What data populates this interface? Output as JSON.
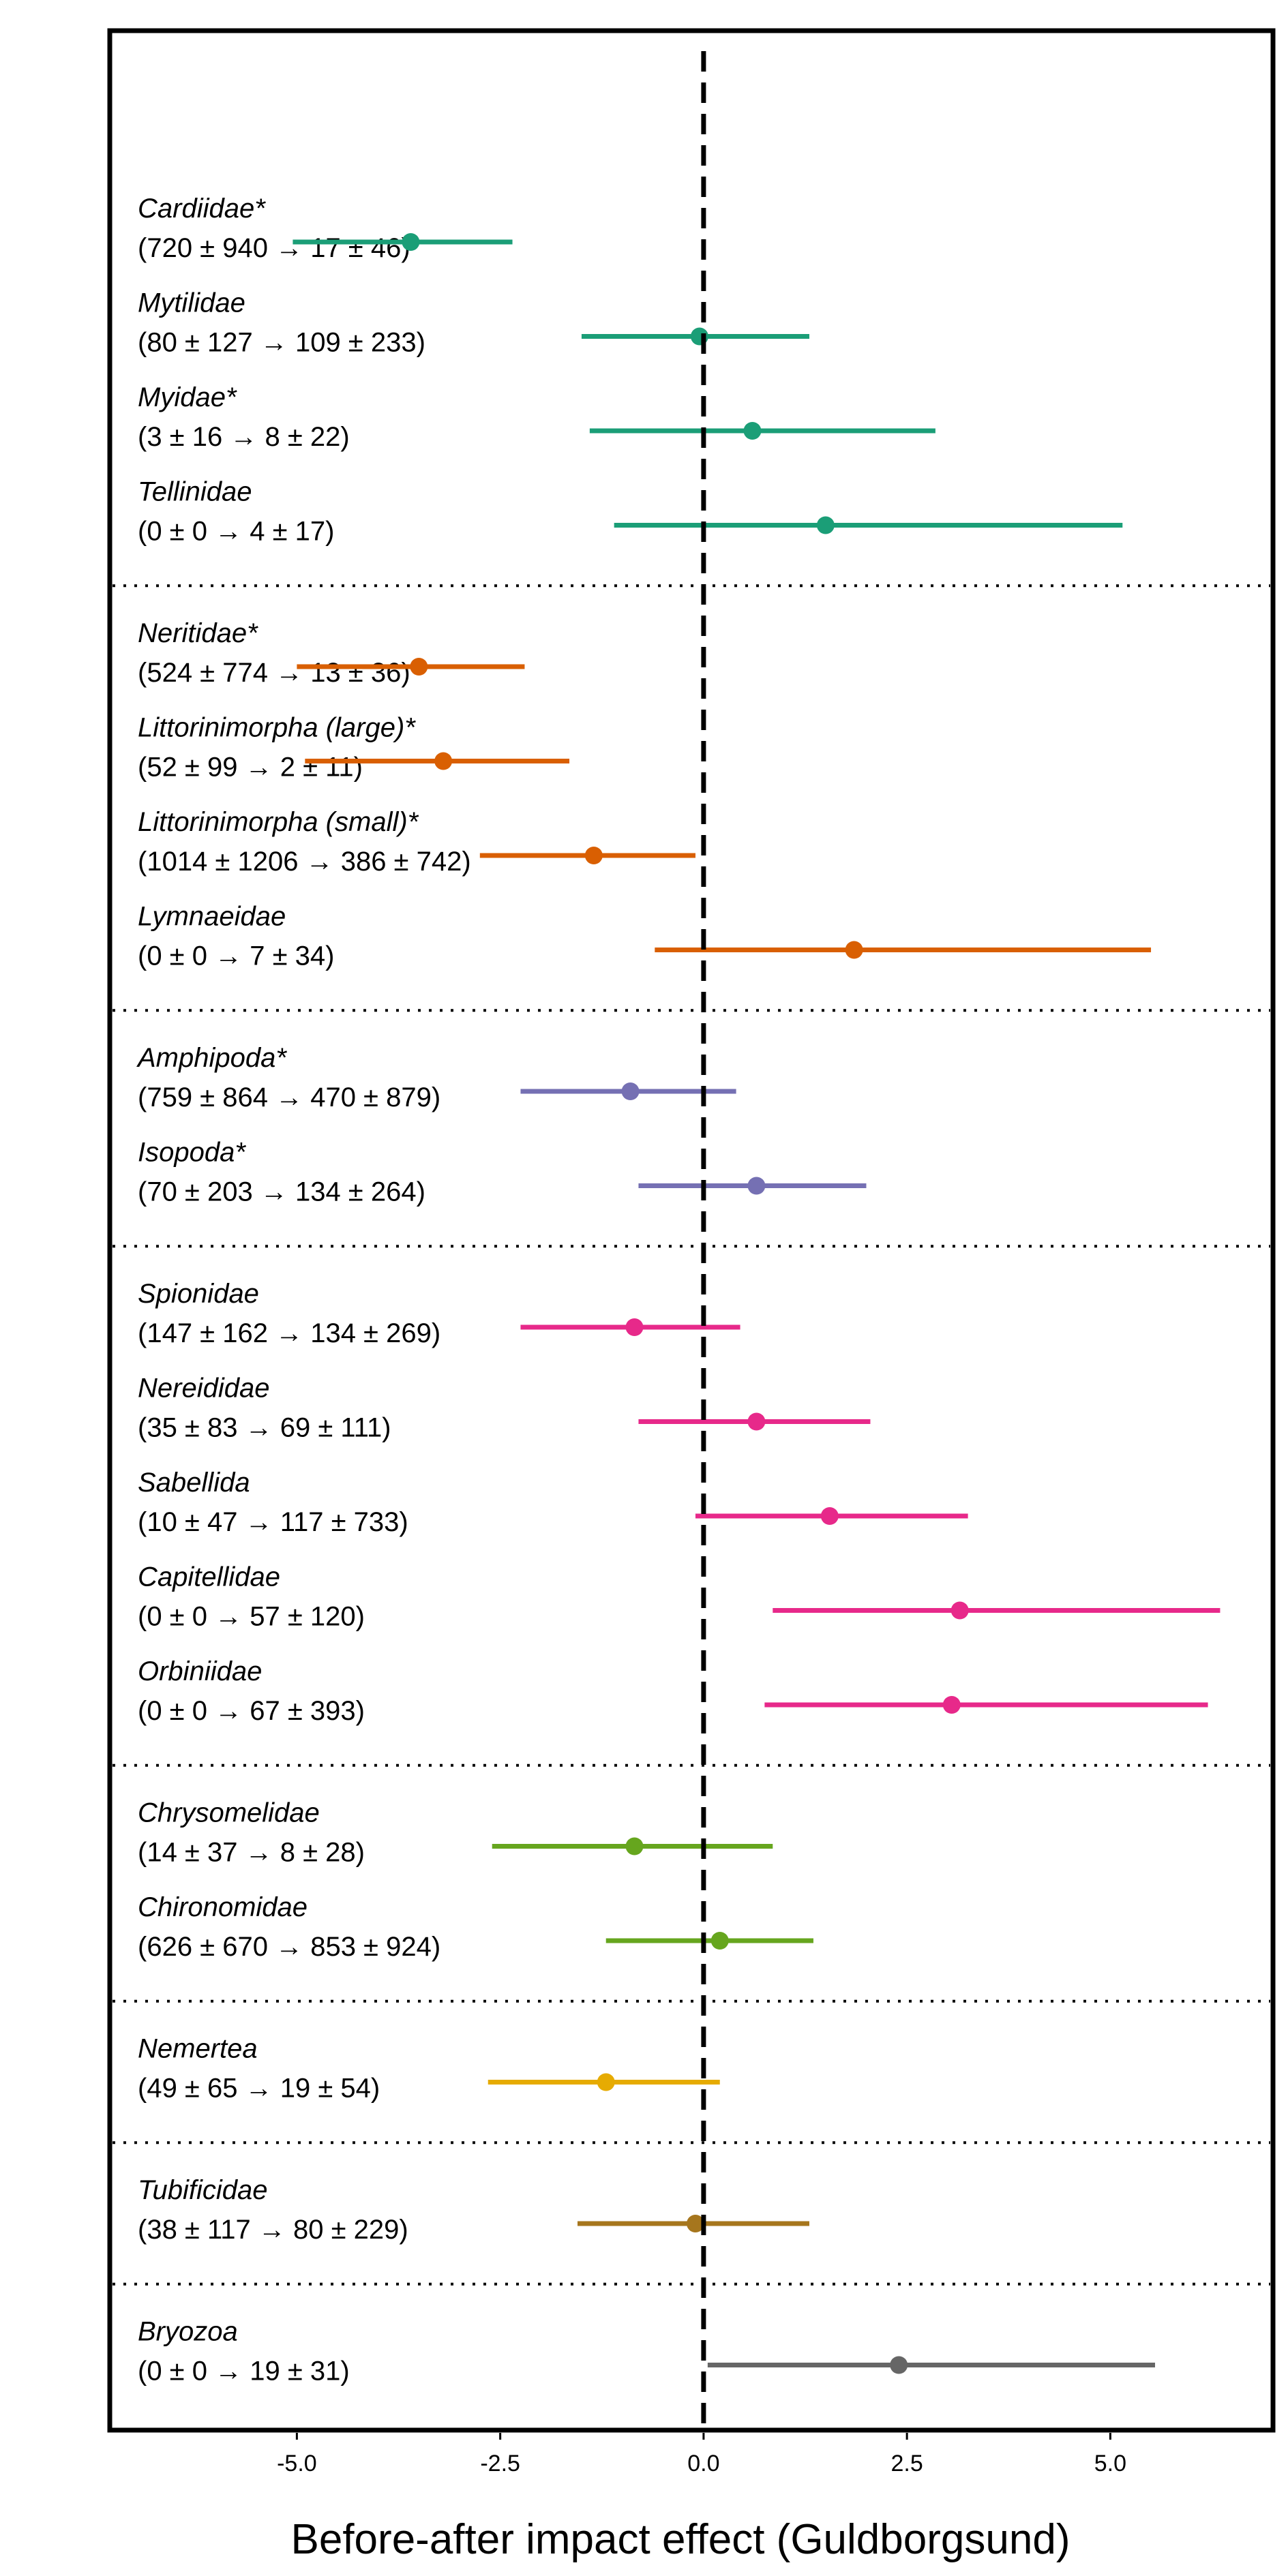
{
  "chart_data": {
    "type": "forest",
    "xlabel": "Before-after impact effect (Guldborgsund)",
    "xlim": [
      -7.3,
      7.0
    ],
    "xticks": [
      -5.0,
      -2.5,
      0.0,
      2.5,
      5.0
    ],
    "xtick_labels": [
      "-5.0",
      "-2.5",
      "0.0",
      "2.5",
      "5.0"
    ],
    "reference_line": 0.0,
    "grid": false,
    "groups": [
      {
        "color": "#1b9e77",
        "rows": [
          {
            "family": "Cardiidae*",
            "counts": "(720 ± 940 → 17 ± 46)",
            "estimate": -3.6,
            "lower": -5.05,
            "upper": -2.35
          },
          {
            "family": "Mytilidae",
            "counts": "(80 ± 127 → 109 ± 233)",
            "estimate": -0.05,
            "lower": -1.5,
            "upper": 1.3
          },
          {
            "family": "Myidae*",
            "counts": "(3 ± 16 → 8 ± 22)",
            "estimate": 0.6,
            "lower": -1.4,
            "upper": 2.85
          },
          {
            "family": "Tellinidae",
            "counts": "(0 ± 0 → 4 ± 17)",
            "estimate": 1.5,
            "lower": -1.1,
            "upper": 5.15
          }
        ]
      },
      {
        "color": "#d95f02",
        "rows": [
          {
            "family": "Neritidae*",
            "counts": "(524 ± 774 → 13 ± 36)",
            "estimate": -3.5,
            "lower": -5.0,
            "upper": -2.2
          },
          {
            "family": "Littorinimorpha (large)*",
            "counts": "(52 ± 99 → 2 ± 11)",
            "estimate": -3.2,
            "lower": -4.9,
            "upper": -1.65
          },
          {
            "family": "Littorinimorpha (small)*",
            "counts": "(1014 ± 1206 → 386 ± 742)",
            "estimate": -1.35,
            "lower": -2.75,
            "upper": -0.1
          },
          {
            "family": "Lymnaeidae",
            "counts": "(0 ± 0 → 7 ± 34)",
            "estimate": 1.85,
            "lower": -0.6,
            "upper": 5.5
          }
        ]
      },
      {
        "color": "#7570b3",
        "rows": [
          {
            "family": "Amphipoda*",
            "counts": "(759 ± 864 → 470 ± 879)",
            "estimate": -0.9,
            "lower": -2.25,
            "upper": 0.4
          },
          {
            "family": "Isopoda*",
            "counts": "(70 ± 203 → 134 ± 264)",
            "estimate": 0.65,
            "lower": -0.8,
            "upper": 2.0
          }
        ]
      },
      {
        "color": "#e7298a",
        "rows": [
          {
            "family": "Spionidae",
            "counts": "(147 ± 162 → 134 ± 269)",
            "estimate": -0.85,
            "lower": -2.25,
            "upper": 0.45
          },
          {
            "family": "Nereididae",
            "counts": "(35 ± 83 → 69 ± 111)",
            "estimate": 0.65,
            "lower": -0.8,
            "upper": 2.05
          },
          {
            "family": "Sabellida",
            "counts": "(10 ± 47 → 117 ± 733)",
            "estimate": 1.55,
            "lower": -0.1,
            "upper": 3.25
          },
          {
            "family": "Capitellidae",
            "counts": "(0 ± 0 → 57 ± 120)",
            "estimate": 3.15,
            "lower": 0.85,
            "upper": 6.35
          },
          {
            "family": "Orbiniidae",
            "counts": "(0 ± 0 → 67 ± 393)",
            "estimate": 3.05,
            "lower": 0.75,
            "upper": 6.2
          }
        ]
      },
      {
        "color": "#66a61e",
        "rows": [
          {
            "family": "Chrysomelidae",
            "counts": "(14 ± 37 → 8 ± 28)",
            "estimate": -0.85,
            "lower": -2.6,
            "upper": 0.85
          },
          {
            "family": "Chironomidae",
            "counts": "(626 ± 670 → 853 ± 924)",
            "estimate": 0.2,
            "lower": -1.2,
            "upper": 1.35
          }
        ]
      },
      {
        "color": "#e6ab02",
        "rows": [
          {
            "family": "Nemertea",
            "counts": "(49 ± 65 → 19 ± 54)",
            "estimate": -1.2,
            "lower": -2.65,
            "upper": 0.2
          }
        ]
      },
      {
        "color": "#a6761d",
        "rows": [
          {
            "family": "Tubificidae",
            "counts": "(38 ± 117 → 80 ± 229)",
            "estimate": -0.1,
            "lower": -1.55,
            "upper": 1.3
          }
        ]
      },
      {
        "color": "#666666",
        "rows": [
          {
            "family": "Bryozoa",
            "counts": "(0 ± 0 → 19 ± 31)",
            "estimate": 2.4,
            "lower": 0.05,
            "upper": 5.55
          }
        ]
      }
    ]
  }
}
